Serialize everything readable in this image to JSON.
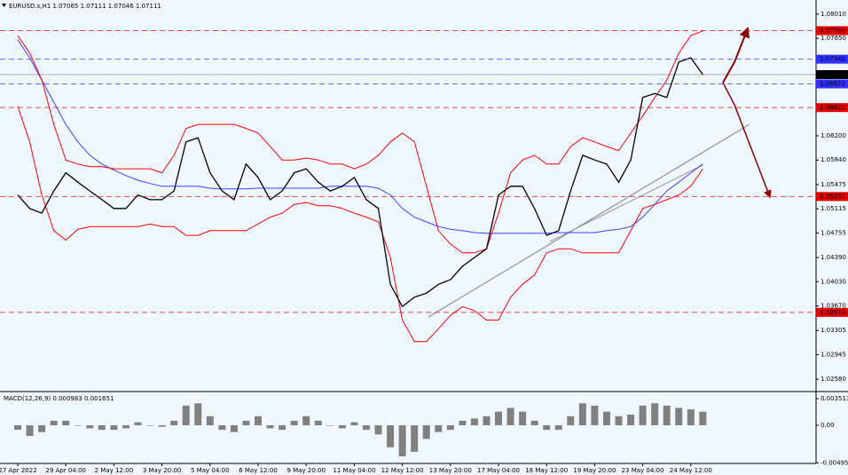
{
  "chart_data": [
    {
      "type": "line",
      "title": "EURUSD.s,H1  1.07065 1.07111 1.07046 1.07111",
      "categories": [
        "27 Apr 2022",
        null,
        null,
        null,
        "29 Apr 04:00",
        null,
        null,
        null,
        "2 May 12:00",
        null,
        null,
        null,
        "3 May 20:00",
        null,
        null,
        null,
        "5 May 04:00",
        null,
        null,
        null,
        "6 May 12:00",
        null,
        null,
        null,
        "9 May 20:00",
        null,
        null,
        null,
        "11 May 04:00",
        null,
        null,
        null,
        "12 May 12:00",
        null,
        null,
        null,
        "13 May 20:00",
        null,
        null,
        null,
        "17 May 04:00",
        null,
        null,
        null,
        "18 May 12:00",
        null,
        null,
        null,
        "19 May 20:00",
        null,
        null,
        null,
        "23 May 04:00",
        null,
        null,
        null,
        "24 May 12:00",
        null
      ],
      "series": [
        {
          "color": "#4040ff",
          "values": [
            1.0763,
            1.0736,
            1.0703,
            1.067,
            1.0637,
            1.0611,
            1.0591,
            1.0578,
            1.0569,
            1.0561,
            1.0554,
            1.0549,
            1.0545,
            1.0545,
            1.0545,
            1.0545,
            1.0542,
            1.0541,
            1.0541,
            1.0541,
            1.0542,
            1.0542,
            1.0542,
            1.0542,
            1.0542,
            1.0542,
            1.0545,
            1.0545,
            1.0545,
            1.0545,
            1.0542,
            1.0532,
            1.0512,
            1.0499,
            1.0492,
            1.0485,
            1.0481,
            1.0479,
            1.0476,
            1.0475,
            1.0475,
            1.0475,
            1.0475,
            1.0475,
            1.0475,
            1.0476,
            1.0476,
            1.0476,
            1.0476,
            1.0479,
            1.0481,
            1.0485,
            1.0499,
            1.0518,
            1.0538,
            1.0551,
            1.0565,
            1.0578
          ]
        },
        {
          "color": "#ff0000",
          "values": [
            1.0769,
            1.0743,
            1.0703,
            1.0637,
            1.0584,
            1.0578,
            1.0574,
            1.0574,
            1.0571,
            1.0571,
            1.0571,
            1.0571,
            1.0565,
            1.0591,
            1.0631,
            1.0637,
            1.0637,
            1.0637,
            1.0637,
            1.0631,
            1.0624,
            1.0604,
            1.0584,
            1.0584,
            1.0587,
            1.0584,
            1.0578,
            1.0578,
            1.0571,
            1.0578,
            1.0591,
            1.0611,
            1.0624,
            1.0611,
            1.0545,
            1.0479,
            1.0459,
            1.0446,
            1.0446,
            1.0452,
            1.0505,
            1.0565,
            1.0584,
            1.0591,
            1.0578,
            1.0578,
            1.0604,
            1.0617,
            1.0611,
            1.0604,
            1.0598,
            1.0624,
            1.065,
            1.0677,
            1.0703,
            1.0743,
            1.0769,
            1.0776
          ]
        },
        {
          "color": "#ff0000",
          "values": [
            1.0664,
            1.0611,
            1.0532,
            1.0479,
            1.0465,
            1.0481,
            1.0485,
            1.0485,
            1.0485,
            1.0485,
            1.0485,
            1.0489,
            1.0485,
            1.0485,
            1.0472,
            1.0472,
            1.0479,
            1.0479,
            1.0479,
            1.0479,
            1.0489,
            1.0499,
            1.0505,
            1.0518,
            1.0521,
            1.0516,
            1.0516,
            1.0512,
            1.0505,
            1.0499,
            1.0492,
            1.0439,
            1.0346,
            1.0314,
            1.0314,
            1.0333,
            1.0353,
            1.0366,
            1.036,
            1.0346,
            1.0346,
            1.038,
            1.0399,
            1.0413,
            1.0446,
            1.0452,
            1.0452,
            1.0446,
            1.0446,
            1.0446,
            1.0446,
            1.0479,
            1.0512,
            1.0518,
            1.0525,
            1.0532,
            1.0545,
            1.0571
          ]
        },
        {
          "color": "#000000",
          "values": [
            1.0532,
            1.0512,
            1.0505,
            1.0538,
            1.0565,
            1.0551,
            1.0538,
            1.0525,
            1.0512,
            1.0512,
            1.0532,
            1.0525,
            1.0525,
            1.0538,
            1.0611,
            1.0617,
            1.0565,
            1.0538,
            1.0525,
            1.0578,
            1.0558,
            1.0525,
            1.0538,
            1.0565,
            1.0571,
            1.0551,
            1.0538,
            1.0545,
            1.0558,
            1.0525,
            1.0512,
            1.0399,
            1.0366,
            1.038,
            1.0386,
            1.0399,
            1.0406,
            1.0426,
            1.0439,
            1.0452,
            1.0532,
            1.0545,
            1.0545,
            1.0512,
            1.0472,
            1.0479,
            1.0538,
            1.0591,
            1.0584,
            1.0578,
            1.0551,
            1.0584,
            1.0677,
            1.0683,
            1.0677,
            1.073,
            1.0736,
            1.0711
          ]
        }
      ],
      "ylim": [
        1.0241,
        1.0822
      ],
      "yticks": [
        {
          "value": 1.0801,
          "label": "1.08010"
        },
        {
          "value": 1.0765,
          "label": "1.07650"
        },
        {
          "value": 1.062,
          "label": "1.06200"
        },
        {
          "value": 1.0584,
          "label": "1.05840"
        },
        {
          "value": 1.05475,
          "label": "1.05475"
        },
        {
          "value": 1.05115,
          "label": "1.05115"
        },
        {
          "value": 1.04755,
          "label": "1.04755"
        },
        {
          "value": 1.0439,
          "label": "1.04390"
        },
        {
          "value": 1.0403,
          "label": "1.04030"
        },
        {
          "value": 1.0367,
          "label": "1.03670"
        },
        {
          "value": 1.03305,
          "label": "1.03305"
        },
        {
          "value": 1.02945,
          "label": "1.02945"
        },
        {
          "value": 1.0258,
          "label": "1.02580"
        }
      ],
      "levels": [
        {
          "value": 1.07764,
          "label": "1.07764",
          "color": "#e00000"
        },
        {
          "value": 1.0734,
          "label": "1.07340",
          "color": "#3030ff"
        },
        {
          "value": 1.07111,
          "label": "1.07111",
          "color": "#000000"
        },
        {
          "value": 1.06972,
          "label": "1.06972",
          "color": "#3030ff"
        },
        {
          "value": 1.0662,
          "label": "1.06620",
          "color": "#e00000"
        },
        {
          "value": 1.05297,
          "label": "1.05297",
          "color": "#e00000"
        },
        {
          "value": 1.03574,
          "label": "1.03574",
          "color": "#e00000"
        }
      ]
    },
    {
      "type": "bar",
      "title": "MACD(12,26,9) 0.000983 0.001651",
      "color": "#808080",
      "values": [
        -0.0006,
        -0.0014,
        -0.0009,
        0.0006,
        0.0006,
        0,
        -0.0004,
        -0.0006,
        -0.0006,
        -0.0004,
        0.0004,
        0,
        -0.0002,
        0.0006,
        0.0026,
        0.0029,
        0.0012,
        -0.0006,
        -0.0009,
        0.0006,
        0.0012,
        -0.0004,
        -0.0006,
        0.0006,
        0.0012,
        0.0006,
        0,
        -0.0004,
        0.0004,
        -0.0006,
        -0.0012,
        -0.0029,
        -0.0041,
        -0.0035,
        -0.0018,
        -0.0009,
        -0.0006,
        0.0006,
        0.0009,
        0.0012,
        0.0018,
        0.0023,
        0.0018,
        0.0006,
        -0.0006,
        -0.0006,
        0.0012,
        0.0029,
        0.0026,
        0.0018,
        0.0012,
        0.0014,
        0.0026,
        0.0029,
        0.0026,
        0.0023,
        0.0021,
        0.0018
      ],
      "ylim": [
        -0.00504,
        0.00422
      ],
      "yticks": [
        0.003513,
        {
          "value": 0,
          "label": "0.00"
        },
        -0.004953
      ]
    }
  ]
}
